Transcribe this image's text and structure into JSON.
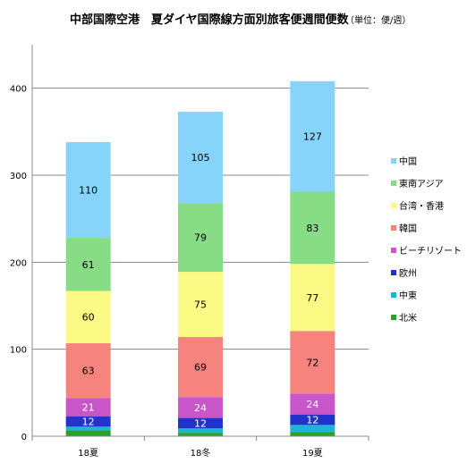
{
  "chart_data": {
    "type": "bar",
    "stacked": true,
    "title": "中部国際空港　夏ダイヤ国際線方面別旅客便週間便数",
    "unit_note": "（単位：便/週）",
    "categories": [
      "18夏",
      "18冬",
      "19夏"
    ],
    "ylim": [
      0,
      450
    ],
    "yticks": [
      0,
      100,
      200,
      300,
      400
    ],
    "grid": true,
    "legend_position": "right",
    "series": [
      {
        "name": "北米",
        "color": "#2ca02c",
        "values": [
          7,
          4,
          5
        ],
        "labels": [
          "",
          "",
          ""
        ]
      },
      {
        "name": "中東",
        "color": "#1fb3d6",
        "values": [
          4,
          5,
          8
        ],
        "labels": [
          "",
          "",
          ""
        ]
      },
      {
        "name": "欧州",
        "color": "#2233cc",
        "values": [
          12,
          12,
          12
        ],
        "labels": [
          "12",
          "12",
          "12"
        ]
      },
      {
        "name": "ビーチリゾート",
        "color": "#c856c8",
        "values": [
          21,
          24,
          24
        ],
        "labels": [
          "21",
          "24",
          "24"
        ]
      },
      {
        "name": "韓国",
        "color": "#f7837e",
        "values": [
          63,
          69,
          72
        ],
        "labels": [
          "63",
          "69",
          "72"
        ]
      },
      {
        "name": "台湾・香港",
        "color": "#fbfa84",
        "values": [
          60,
          75,
          77
        ],
        "labels": [
          "60",
          "75",
          "77"
        ]
      },
      {
        "name": "東南アジア",
        "color": "#87dc85",
        "values": [
          61,
          79,
          83
        ],
        "labels": [
          "61",
          "79",
          "83"
        ]
      },
      {
        "name": "中国",
        "color": "#87d4fb",
        "values": [
          110,
          105,
          127
        ],
        "labels": [
          "110",
          "105",
          "127"
        ]
      }
    ]
  }
}
